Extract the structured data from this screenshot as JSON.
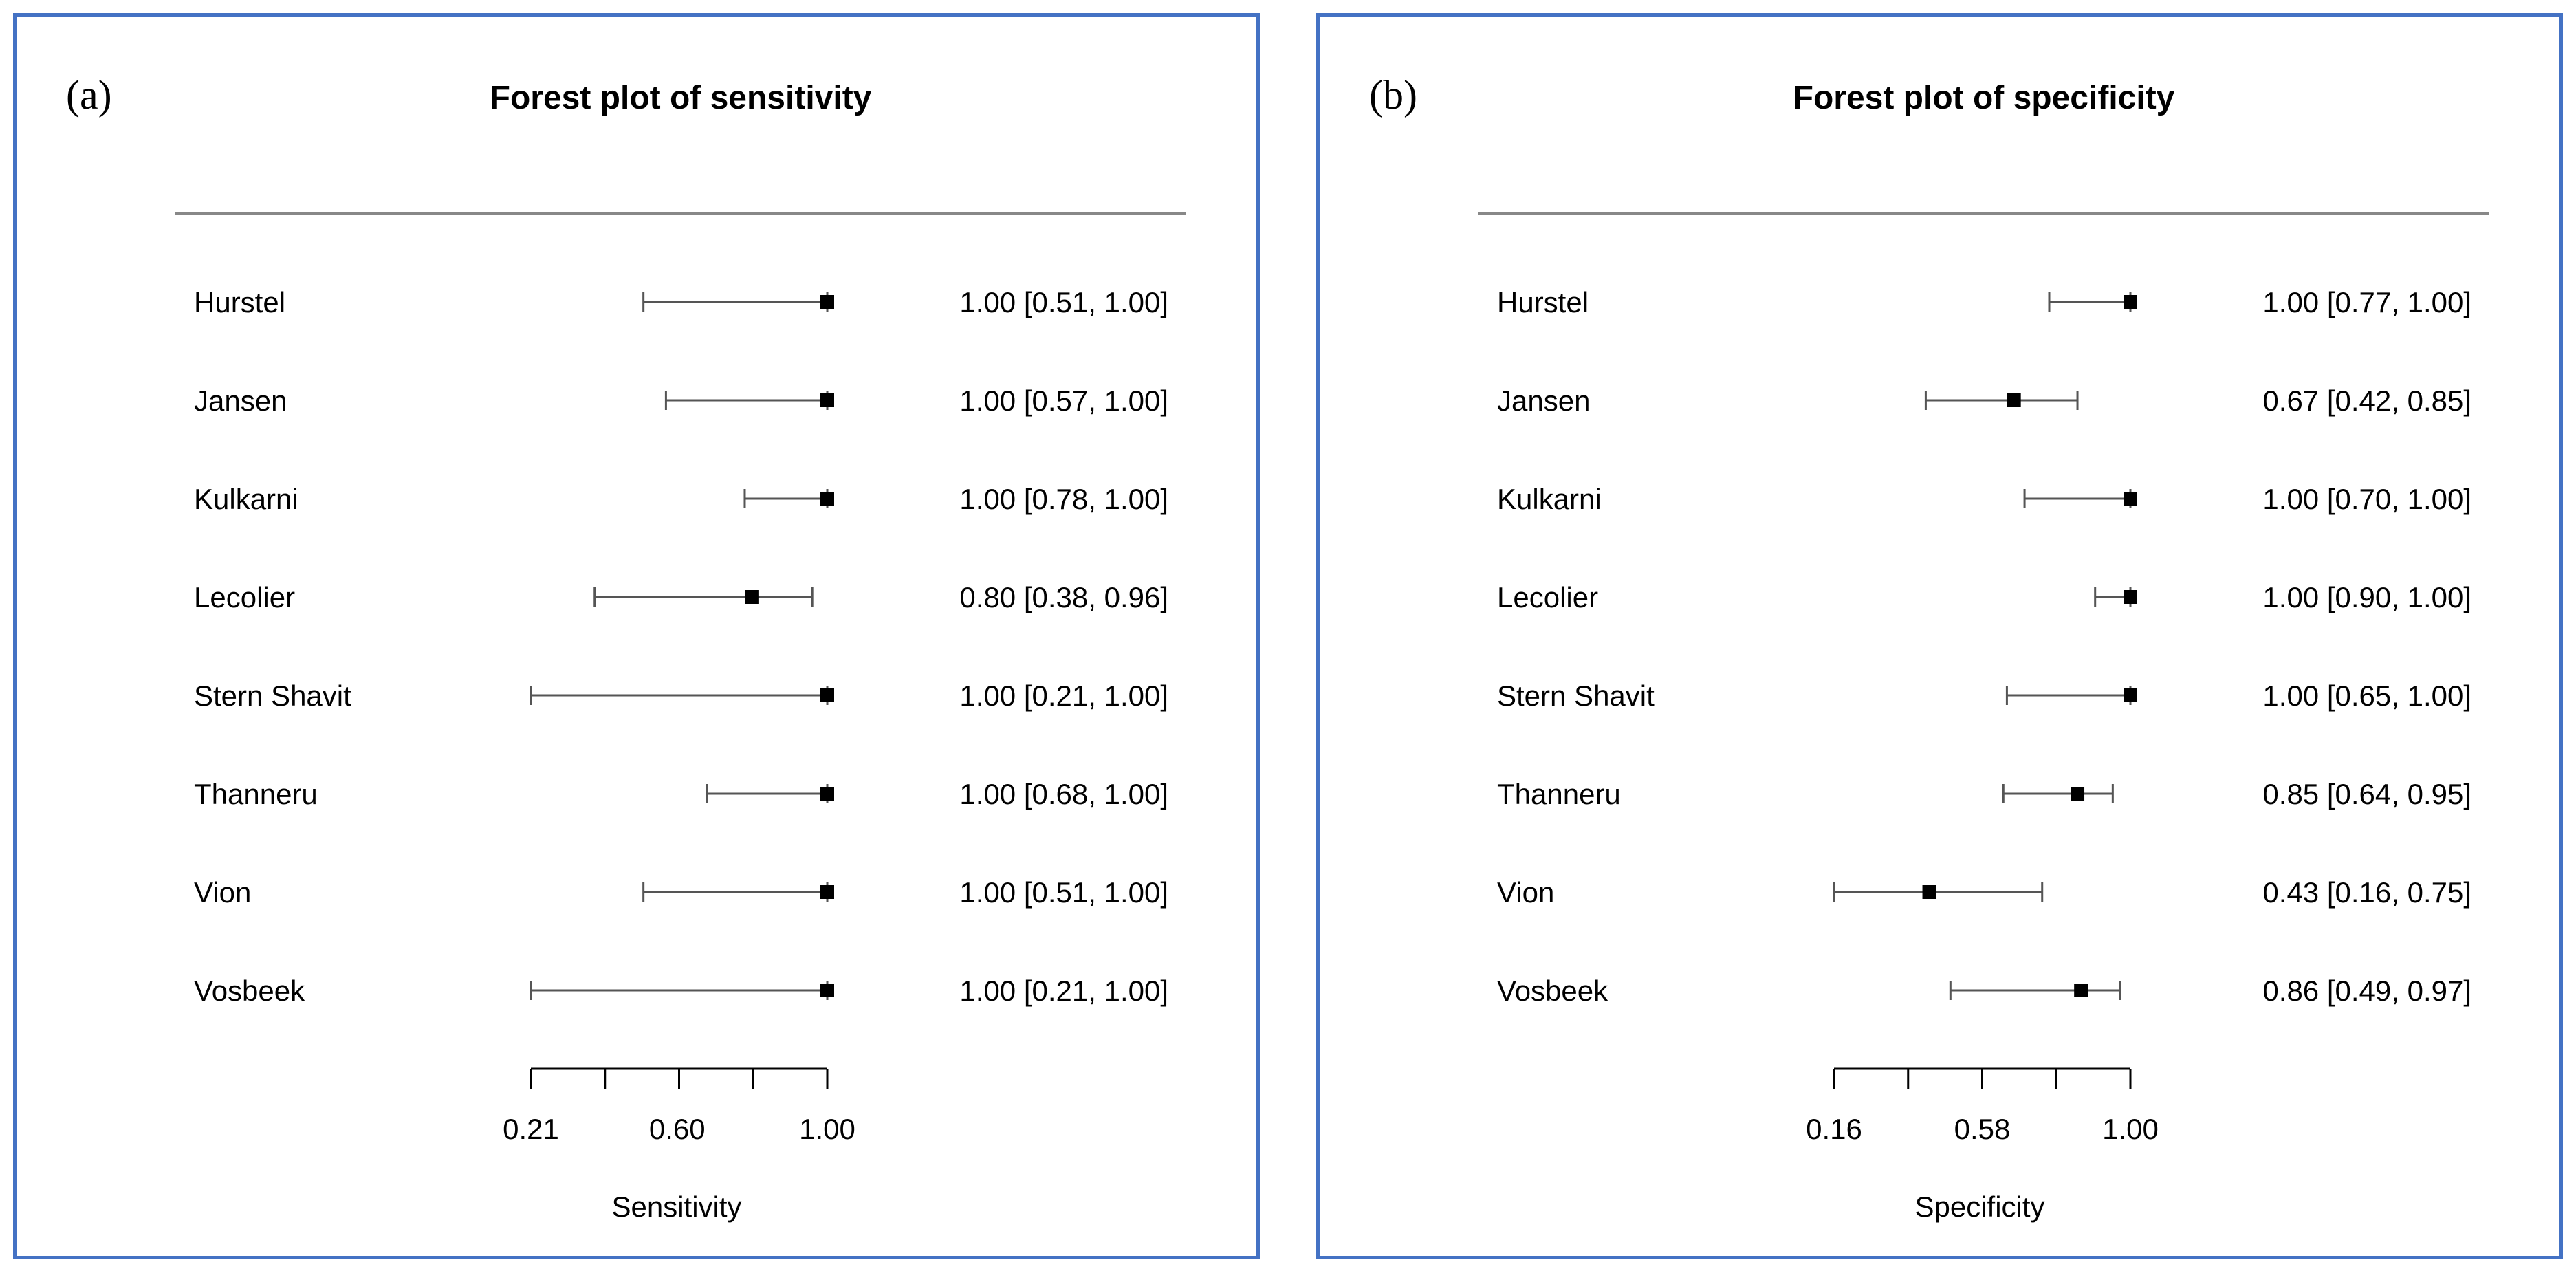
{
  "chart_data": [
    {
      "type": "forest",
      "panel_label": "(a)",
      "title": "Forest plot of sensitivity",
      "xlabel": "Sensitivity",
      "xlim": [
        0.21,
        1.0
      ],
      "tick_values": [
        0.21,
        0.4075,
        0.605,
        0.8025,
        1.0
      ],
      "tick_labels": [
        "0.21",
        "0.60",
        "1.00"
      ],
      "tick_label_values": [
        0.21,
        0.6,
        1.0
      ],
      "studies": [
        {
          "name": "Hurstel",
          "estimate": 1.0,
          "lower": 0.51,
          "upper": 1.0,
          "text": "1.00 [0.51, 1.00]"
        },
        {
          "name": "Jansen",
          "estimate": 1.0,
          "lower": 0.57,
          "upper": 1.0,
          "text": "1.00 [0.57, 1.00]"
        },
        {
          "name": "Kulkarni",
          "estimate": 1.0,
          "lower": 0.78,
          "upper": 1.0,
          "text": "1.00 [0.78, 1.00]"
        },
        {
          "name": "Lecolier",
          "estimate": 0.8,
          "lower": 0.38,
          "upper": 0.96,
          "text": "0.80 [0.38, 0.96]"
        },
        {
          "name": "Stern Shavit",
          "estimate": 1.0,
          "lower": 0.21,
          "upper": 1.0,
          "text": "1.00 [0.21, 1.00]"
        },
        {
          "name": "Thanneru",
          "estimate": 1.0,
          "lower": 0.68,
          "upper": 1.0,
          "text": "1.00 [0.68, 1.00]"
        },
        {
          "name": "Vion",
          "estimate": 1.0,
          "lower": 0.51,
          "upper": 1.0,
          "text": "1.00 [0.51, 1.00]"
        },
        {
          "name": "Vosbeek",
          "estimate": 1.0,
          "lower": 0.21,
          "upper": 1.0,
          "text": "1.00 [0.21, 1.00]"
        }
      ]
    },
    {
      "type": "forest",
      "panel_label": "(b)",
      "title": "Forest plot of specificity",
      "xlabel": "Specificity",
      "xlim": [
        0.16,
        1.0
      ],
      "tick_values": [
        0.16,
        0.37,
        0.58,
        0.79,
        1.0
      ],
      "tick_labels": [
        "0.16",
        "0.58",
        "1.00"
      ],
      "tick_label_values": [
        0.16,
        0.58,
        1.0
      ],
      "studies": [
        {
          "name": "Hurstel",
          "estimate": 1.0,
          "lower": 0.77,
          "upper": 1.0,
          "text": "1.00 [0.77, 1.00]"
        },
        {
          "name": "Jansen",
          "estimate": 0.67,
          "lower": 0.42,
          "upper": 0.85,
          "text": "0.67 [0.42, 0.85]"
        },
        {
          "name": "Kulkarni",
          "estimate": 1.0,
          "lower": 0.7,
          "upper": 1.0,
          "text": "1.00 [0.70, 1.00]"
        },
        {
          "name": "Lecolier",
          "estimate": 1.0,
          "lower": 0.9,
          "upper": 1.0,
          "text": "1.00 [0.90, 1.00]"
        },
        {
          "name": "Stern Shavit",
          "estimate": 1.0,
          "lower": 0.65,
          "upper": 1.0,
          "text": "1.00 [0.65, 1.00]"
        },
        {
          "name": "Thanneru",
          "estimate": 0.85,
          "lower": 0.64,
          "upper": 0.95,
          "text": "0.85 [0.64, 0.95]"
        },
        {
          "name": "Vion",
          "estimate": 0.43,
          "lower": 0.16,
          "upper": 0.75,
          "text": "0.43 [0.16, 0.75]"
        },
        {
          "name": "Vosbeek",
          "estimate": 0.86,
          "lower": 0.49,
          "upper": 0.97,
          "text": "0.86 [0.49, 0.97]"
        }
      ]
    }
  ]
}
